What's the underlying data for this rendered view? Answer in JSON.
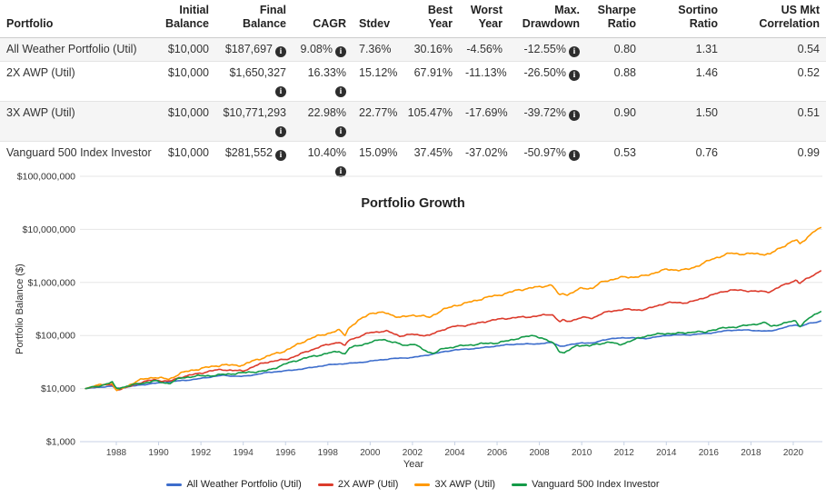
{
  "table": {
    "columns": [
      {
        "key": "portfolio",
        "label": "Portfolio",
        "align": "left",
        "info": false
      },
      {
        "key": "initial",
        "label": "Initial\nBalance",
        "align": "right",
        "info": false
      },
      {
        "key": "final",
        "label": "Final Balance",
        "align": "right",
        "info": true
      },
      {
        "key": "cagr",
        "label": "CAGR",
        "align": "right",
        "info": true
      },
      {
        "key": "stdev",
        "label": "Stdev",
        "align": "right",
        "info": false
      },
      {
        "key": "best",
        "label": "Best\nYear",
        "align": "right",
        "info": false
      },
      {
        "key": "worst",
        "label": "Worst\nYear",
        "align": "right",
        "info": false
      },
      {
        "key": "maxdd",
        "label": "Max.\nDrawdown",
        "align": "right",
        "info": true
      },
      {
        "key": "sharpe",
        "label": "Sharpe\nRatio",
        "align": "right",
        "info": false
      },
      {
        "key": "sortino",
        "label": "Sortino\nRatio",
        "align": "right",
        "info": false
      },
      {
        "key": "uscorr",
        "label": "US Mkt\nCorrelation",
        "align": "right",
        "info": false
      }
    ],
    "rows": [
      {
        "portfolio": "All Weather Portfolio (Util)",
        "initial": "$10,000",
        "final": "$187,697",
        "cagr": "9.08%",
        "stdev": "7.36%",
        "best": "30.16%",
        "worst": "-4.56%",
        "maxdd": "-12.55%",
        "sharpe": "0.80",
        "sortino": "1.31",
        "uscorr": "0.54"
      },
      {
        "portfolio": "2X AWP (Util)",
        "initial": "$10,000",
        "final": "$1,650,327",
        "cagr": "16.33%",
        "stdev": "15.12%",
        "best": "67.91%",
        "worst": "-11.13%",
        "maxdd": "-26.50%",
        "sharpe": "0.88",
        "sortino": "1.46",
        "uscorr": "0.52"
      },
      {
        "portfolio": "3X AWP (Util)",
        "initial": "$10,000",
        "final": "$10,771,293",
        "cagr": "22.98%",
        "stdev": "22.77%",
        "best": "105.47%",
        "worst": "-17.69%",
        "maxdd": "-39.72%",
        "sharpe": "0.90",
        "sortino": "1.50",
        "uscorr": "0.51"
      },
      {
        "portfolio": "Vanguard 500 Index Investor",
        "initial": "$10,000",
        "final": "$281,552",
        "cagr": "10.40%",
        "stdev": "15.09%",
        "best": "37.45%",
        "worst": "-37.02%",
        "maxdd": "-50.97%",
        "sharpe": "0.53",
        "sortino": "0.76",
        "uscorr": "0.99"
      }
    ],
    "info_icon_glyph": "i"
  },
  "chart_data": {
    "type": "line",
    "title": "Portfolio Growth",
    "xlabel": "Year",
    "ylabel": "Portfolio Balance ($)",
    "y_scale": "log",
    "ylim": [
      1000,
      100000000
    ],
    "xlim": [
      1986.55,
      2021.3
    ],
    "grid": true,
    "legend_position": "bottom",
    "y_ticks": [
      {
        "value": 1000,
        "label": "$1,000"
      },
      {
        "value": 10000,
        "label": "$10,000"
      },
      {
        "value": 100000,
        "label": "$100,000"
      },
      {
        "value": 1000000,
        "label": "$1,000,000"
      },
      {
        "value": 10000000,
        "label": "$10,000,000"
      },
      {
        "value": 100000000,
        "label": "$100,000,000"
      }
    ],
    "x_ticks": [
      1988,
      1990,
      1992,
      1994,
      1996,
      1998,
      2000,
      2002,
      2004,
      2006,
      2008,
      2010,
      2012,
      2014,
      2016,
      2018,
      2020
    ],
    "series": [
      {
        "name": "All Weather Portfolio (Util)",
        "color": "#3d6dcc",
        "final_value": 187697,
        "points": [
          [
            1986.55,
            10000
          ],
          [
            1987.1,
            10400
          ],
          [
            1987.8,
            11000
          ],
          [
            1988.0,
            10100
          ],
          [
            1989,
            11600
          ],
          [
            1990,
            12600
          ],
          [
            1991,
            14200
          ],
          [
            1992,
            15500
          ],
          [
            1993,
            17500
          ],
          [
            1994,
            17200
          ],
          [
            1995,
            19500
          ],
          [
            1996,
            21500
          ],
          [
            1997,
            24500
          ],
          [
            1998,
            27500
          ],
          [
            1999,
            30000
          ],
          [
            2000,
            33000
          ],
          [
            2001,
            36000
          ],
          [
            2002,
            39000
          ],
          [
            2003,
            45000
          ],
          [
            2004,
            53000
          ],
          [
            2005,
            58000
          ],
          [
            2006,
            63000
          ],
          [
            2007,
            69000
          ],
          [
            2008,
            71000
          ],
          [
            2008.6,
            73000
          ],
          [
            2009.0,
            62000
          ],
          [
            2009.3,
            64000
          ],
          [
            2010,
            74000
          ],
          [
            2010.5,
            72000
          ],
          [
            2011,
            83000
          ],
          [
            2012,
            90000
          ],
          [
            2013,
            89000
          ],
          [
            2014,
            100000
          ],
          [
            2015,
            102000
          ],
          [
            2016,
            112000
          ],
          [
            2017,
            124000
          ],
          [
            2018,
            126000
          ],
          [
            2018.9,
            122000
          ],
          [
            2019.9,
            150000
          ],
          [
            2020.15,
            158000
          ],
          [
            2020.3,
            146000
          ],
          [
            2020.7,
            167000
          ],
          [
            2021.0,
            176000
          ],
          [
            2021.3,
            187697
          ]
        ]
      },
      {
        "name": "2X AWP (Util)",
        "color": "#dc3b2c",
        "final_value": 1650327,
        "points": [
          [
            1986.55,
            10000
          ],
          [
            1987.1,
            10900
          ],
          [
            1987.8,
            12200
          ],
          [
            1988.0,
            9700
          ],
          [
            1988.5,
            10700
          ],
          [
            1989,
            12400
          ],
          [
            1989.8,
            14300
          ],
          [
            1990.5,
            13800
          ],
          [
            1991,
            16800
          ],
          [
            1992,
            19200
          ],
          [
            1993,
            23000
          ],
          [
            1994,
            22000
          ],
          [
            1995,
            30000
          ],
          [
            1996,
            36000
          ],
          [
            1997,
            50000
          ],
          [
            1998,
            66000
          ],
          [
            1998.55,
            76000
          ],
          [
            1998.8,
            64000
          ],
          [
            1999,
            85000
          ],
          [
            2000,
            112000
          ],
          [
            2000.8,
            118000
          ],
          [
            2001.4,
            100000
          ],
          [
            2002,
            108000
          ],
          [
            2002.8,
            98000
          ],
          [
            2003.4,
            125000
          ],
          [
            2004,
            150000
          ],
          [
            2005,
            170000
          ],
          [
            2006,
            195000
          ],
          [
            2007,
            225000
          ],
          [
            2008,
            235000
          ],
          [
            2008.6,
            245000
          ],
          [
            2008.95,
            178000
          ],
          [
            2009.1,
            192000
          ],
          [
            2009.3,
            182000
          ],
          [
            2010,
            225000
          ],
          [
            2010.5,
            215000
          ],
          [
            2011,
            260000
          ],
          [
            2012,
            310000
          ],
          [
            2013,
            315000
          ],
          [
            2014,
            400000
          ],
          [
            2015,
            420000
          ],
          [
            2016,
            560000
          ],
          [
            2017,
            700000
          ],
          [
            2018,
            710000
          ],
          [
            2018.9,
            670000
          ],
          [
            2019.9,
            1000000
          ],
          [
            2020.15,
            1100000
          ],
          [
            2020.3,
            950000
          ],
          [
            2020.7,
            1250000
          ],
          [
            2021.0,
            1450000
          ],
          [
            2021.3,
            1650327
          ]
        ]
      },
      {
        "name": "3X AWP (Util)",
        "color": "#ff9900",
        "final_value": 10771293,
        "points": [
          [
            1986.55,
            10000
          ],
          [
            1987.1,
            11400
          ],
          [
            1987.8,
            13500
          ],
          [
            1988.0,
            9300
          ],
          [
            1988.5,
            11000
          ],
          [
            1989,
            13500
          ],
          [
            1989.8,
            16500
          ],
          [
            1990.5,
            15500
          ],
          [
            1991,
            19500
          ],
          [
            1992,
            23000
          ],
          [
            1993,
            29000
          ],
          [
            1994,
            27500
          ],
          [
            1995,
            38000
          ],
          [
            1995.3,
            43000
          ],
          [
            1996,
            54000
          ],
          [
            1997,
            80000
          ],
          [
            1998,
            110000
          ],
          [
            1998.55,
            130000
          ],
          [
            1998.8,
            105000
          ],
          [
            1999,
            145000
          ],
          [
            2000,
            255000
          ],
          [
            2000.8,
            268000
          ],
          [
            2001.4,
            225000
          ],
          [
            2002,
            245000
          ],
          [
            2002.8,
            212000
          ],
          [
            2003.4,
            300000
          ],
          [
            2004,
            380000
          ],
          [
            2005,
            450000
          ],
          [
            2006,
            560000
          ],
          [
            2007,
            750000
          ],
          [
            2008,
            800000
          ],
          [
            2008.6,
            870000
          ],
          [
            2008.95,
            560000
          ],
          [
            2009.1,
            650000
          ],
          [
            2009.3,
            600000
          ],
          [
            2010,
            800000
          ],
          [
            2010.5,
            760000
          ],
          [
            2011,
            1000000
          ],
          [
            2012,
            1300000
          ],
          [
            2013,
            1330000
          ],
          [
            2014,
            1700000
          ],
          [
            2015,
            1800000
          ],
          [
            2016,
            2500000
          ],
          [
            2017,
            3500000
          ],
          [
            2018,
            3600000
          ],
          [
            2018.9,
            3300000
          ],
          [
            2019.9,
            5800000
          ],
          [
            2020.15,
            6500000
          ],
          [
            2020.3,
            5400000
          ],
          [
            2020.7,
            7600000
          ],
          [
            2021.0,
            9300000
          ],
          [
            2021.3,
            10771293
          ]
        ]
      },
      {
        "name": "Vanguard 500 Index Investor",
        "color": "#149b48",
        "final_value": 281552,
        "points": [
          [
            1986.55,
            10000
          ],
          [
            1987.1,
            11300
          ],
          [
            1987.8,
            13400
          ],
          [
            1988.0,
            9900
          ],
          [
            1988.5,
            10800
          ],
          [
            1989,
            11900
          ],
          [
            1989.8,
            14300
          ],
          [
            1990.5,
            12700
          ],
          [
            1991,
            15300
          ],
          [
            1992,
            17300
          ],
          [
            1993,
            18800
          ],
          [
            1994,
            19200
          ],
          [
            1995,
            21500
          ],
          [
            1996,
            29500
          ],
          [
            1997,
            37000
          ],
          [
            1998,
            47500
          ],
          [
            1998.55,
            52000
          ],
          [
            1998.8,
            44500
          ],
          [
            1999,
            57000
          ],
          [
            1999.9,
            70000
          ],
          [
            2000.6,
            88000
          ],
          [
            2001,
            78000
          ],
          [
            2001.7,
            65000
          ],
          [
            2002,
            68000
          ],
          [
            2002.75,
            48000
          ],
          [
            2003.1,
            47000
          ],
          [
            2003.4,
            58000
          ],
          [
            2004,
            63000
          ],
          [
            2005,
            66000
          ],
          [
            2006,
            74000
          ],
          [
            2007,
            90000
          ],
          [
            2007.8,
            97000
          ],
          [
            2008.3,
            82000
          ],
          [
            2008.7,
            71000
          ],
          [
            2008.95,
            52000
          ],
          [
            2009.15,
            48000
          ],
          [
            2009.8,
            66000
          ],
          [
            2010.4,
            62000
          ],
          [
            2011.3,
            76000
          ],
          [
            2011.8,
            69000
          ],
          [
            2012,
            74000
          ],
          [
            2013,
            95000
          ],
          [
            2014,
            110000
          ],
          [
            2015.4,
            118000
          ],
          [
            2015.8,
            110000
          ],
          [
            2016,
            120000
          ],
          [
            2017,
            146000
          ],
          [
            2018,
            160000
          ],
          [
            2018.7,
            168000
          ],
          [
            2018.95,
            145000
          ],
          [
            2019.9,
            188000
          ],
          [
            2020.13,
            195000
          ],
          [
            2020.3,
            152000
          ],
          [
            2020.7,
            205000
          ],
          [
            2021.0,
            240000
          ],
          [
            2021.3,
            281552
          ]
        ]
      }
    ]
  }
}
